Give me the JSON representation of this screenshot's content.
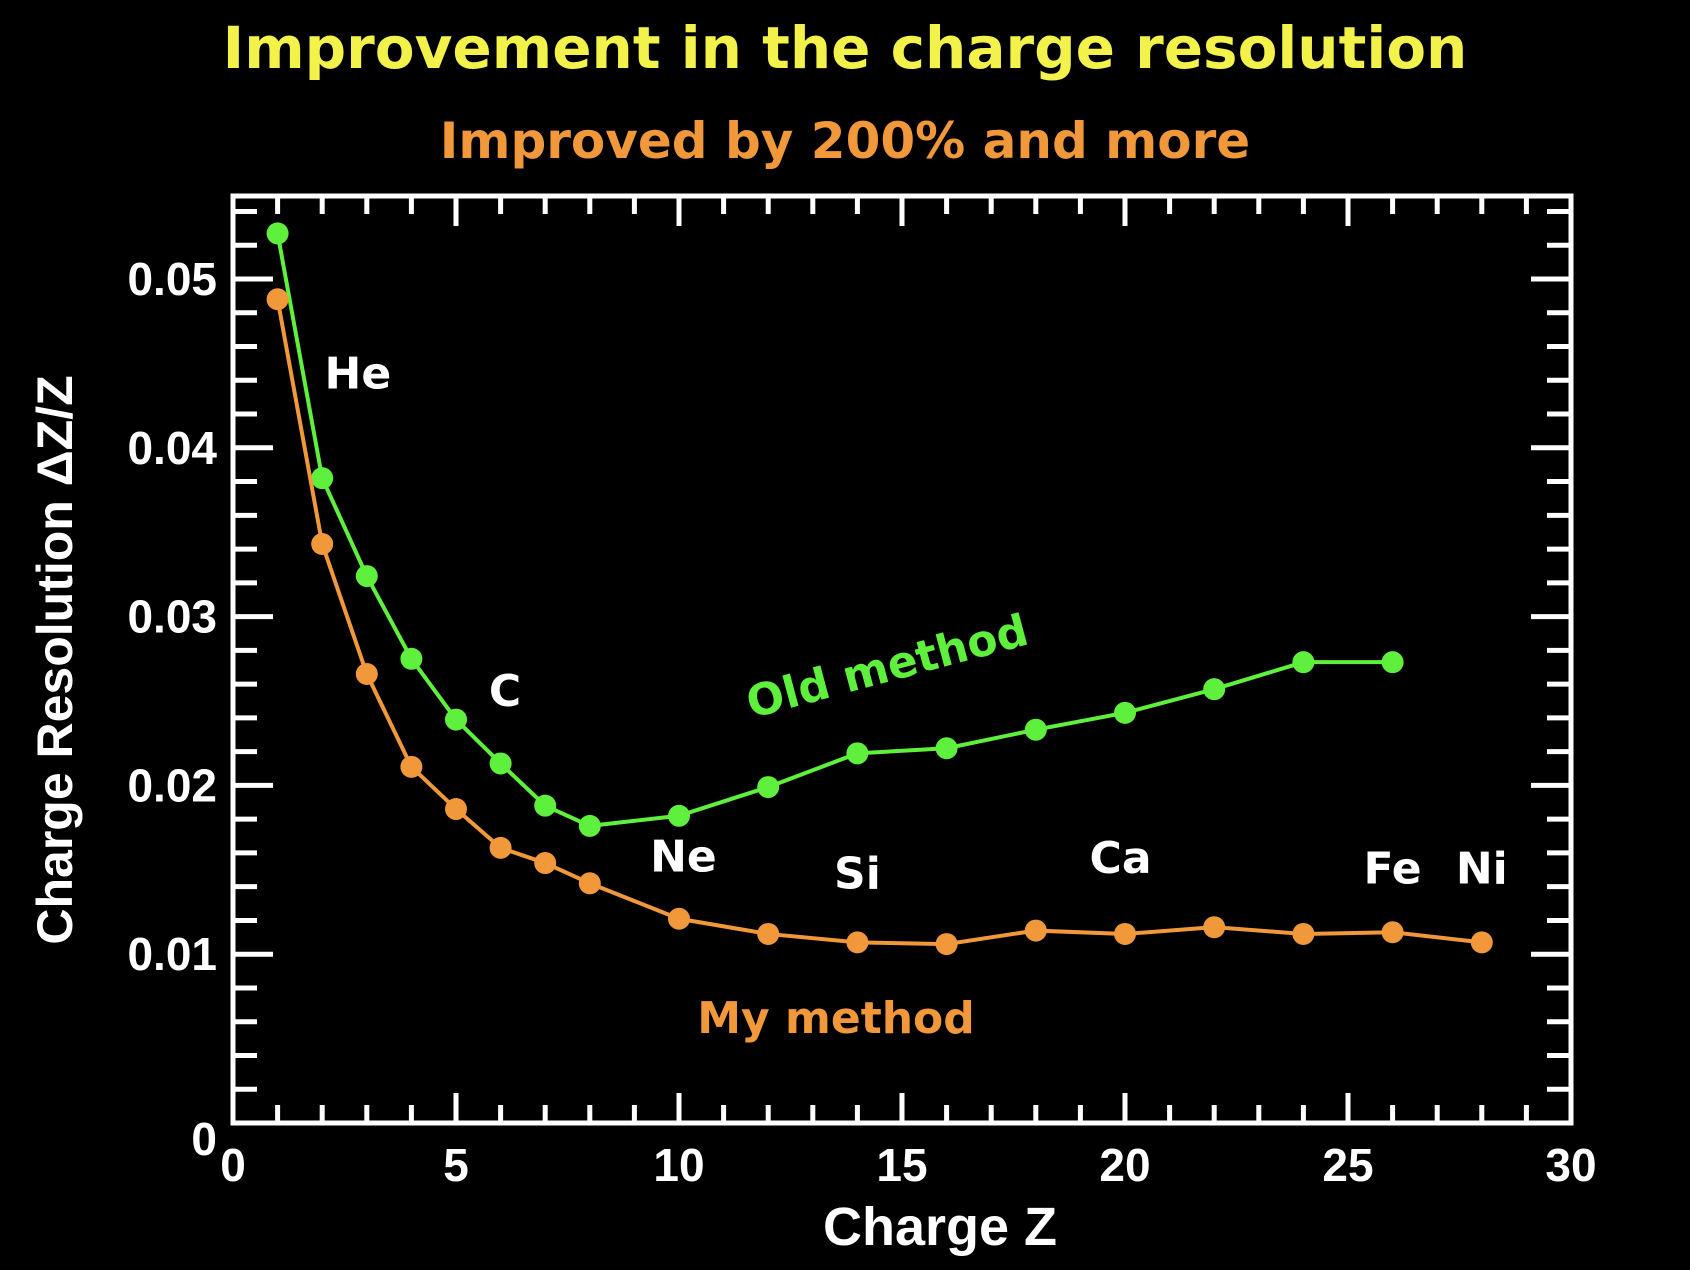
{
  "title": "Improvement in the charge resolution",
  "subtitle": "Improved by 200% and more",
  "colors": {
    "title": "#f2f24a",
    "subtitle": "#f0983a",
    "old": "#5ef03c",
    "mine": "#f0983a",
    "axes": "#ffffff"
  },
  "chart_data": {
    "type": "line",
    "title": "Improvement in the charge resolution",
    "xlabel": "Charge Z",
    "ylabel": "Charge Resolution ΔZ/Z",
    "xlim": [
      0,
      30
    ],
    "ylim": [
      0,
      0.055
    ],
    "xticks": [
      "0",
      "5",
      "10",
      "15",
      "20",
      "25",
      "30"
    ],
    "xtick_values": [
      0,
      5,
      10,
      15,
      20,
      25,
      30
    ],
    "yticks": [
      "0",
      "0.01",
      "0.02",
      "0.03",
      "0.04",
      "0.05"
    ],
    "ytick_values": [
      0,
      0.01,
      0.02,
      0.03,
      0.04,
      0.05
    ],
    "grid": false,
    "series": [
      {
        "name": "Old method",
        "x": [
          1,
          2,
          3,
          4,
          5,
          6,
          7,
          8,
          10,
          12,
          14,
          16,
          18,
          20,
          22,
          24,
          26
        ],
        "values": [
          0.0527,
          0.0382,
          0.0324,
          0.0275,
          0.0239,
          0.0213,
          0.0188,
          0.0176,
          0.0182,
          0.0199,
          0.0219,
          0.0222,
          0.0233,
          0.0243,
          0.0257,
          0.0273,
          0.0273
        ]
      },
      {
        "name": "My method",
        "x": [
          1,
          2,
          3,
          4,
          5,
          6,
          7,
          8,
          10,
          12,
          14,
          16,
          18,
          20,
          22,
          24,
          26,
          28
        ],
        "values": [
          0.0488,
          0.0343,
          0.0266,
          0.0211,
          0.0186,
          0.0163,
          0.0154,
          0.0142,
          0.0121,
          0.0112,
          0.0107,
          0.0106,
          0.0114,
          0.0112,
          0.0116,
          0.0112,
          0.0113,
          0.0107
        ]
      }
    ],
    "annotations": [
      {
        "text": "He",
        "x": 2.8,
        "y": 0.0435
      },
      {
        "text": "C",
        "x": 6.1,
        "y": 0.0247
      },
      {
        "text": "Ne",
        "x": 10.1,
        "y": 0.0149
      },
      {
        "text": "Si",
        "x": 14,
        "y": 0.0139
      },
      {
        "text": "Ca",
        "x": 19.9,
        "y": 0.0148
      },
      {
        "text": "Fe",
        "x": 26,
        "y": 0.0142
      },
      {
        "text": "Ni",
        "x": 28,
        "y": 0.0142
      }
    ],
    "legend": [
      {
        "text": "Old method",
        "placement": "center-right, above green curve"
      },
      {
        "text": "My method",
        "placement": "bottom-center, below orange curve"
      }
    ]
  }
}
